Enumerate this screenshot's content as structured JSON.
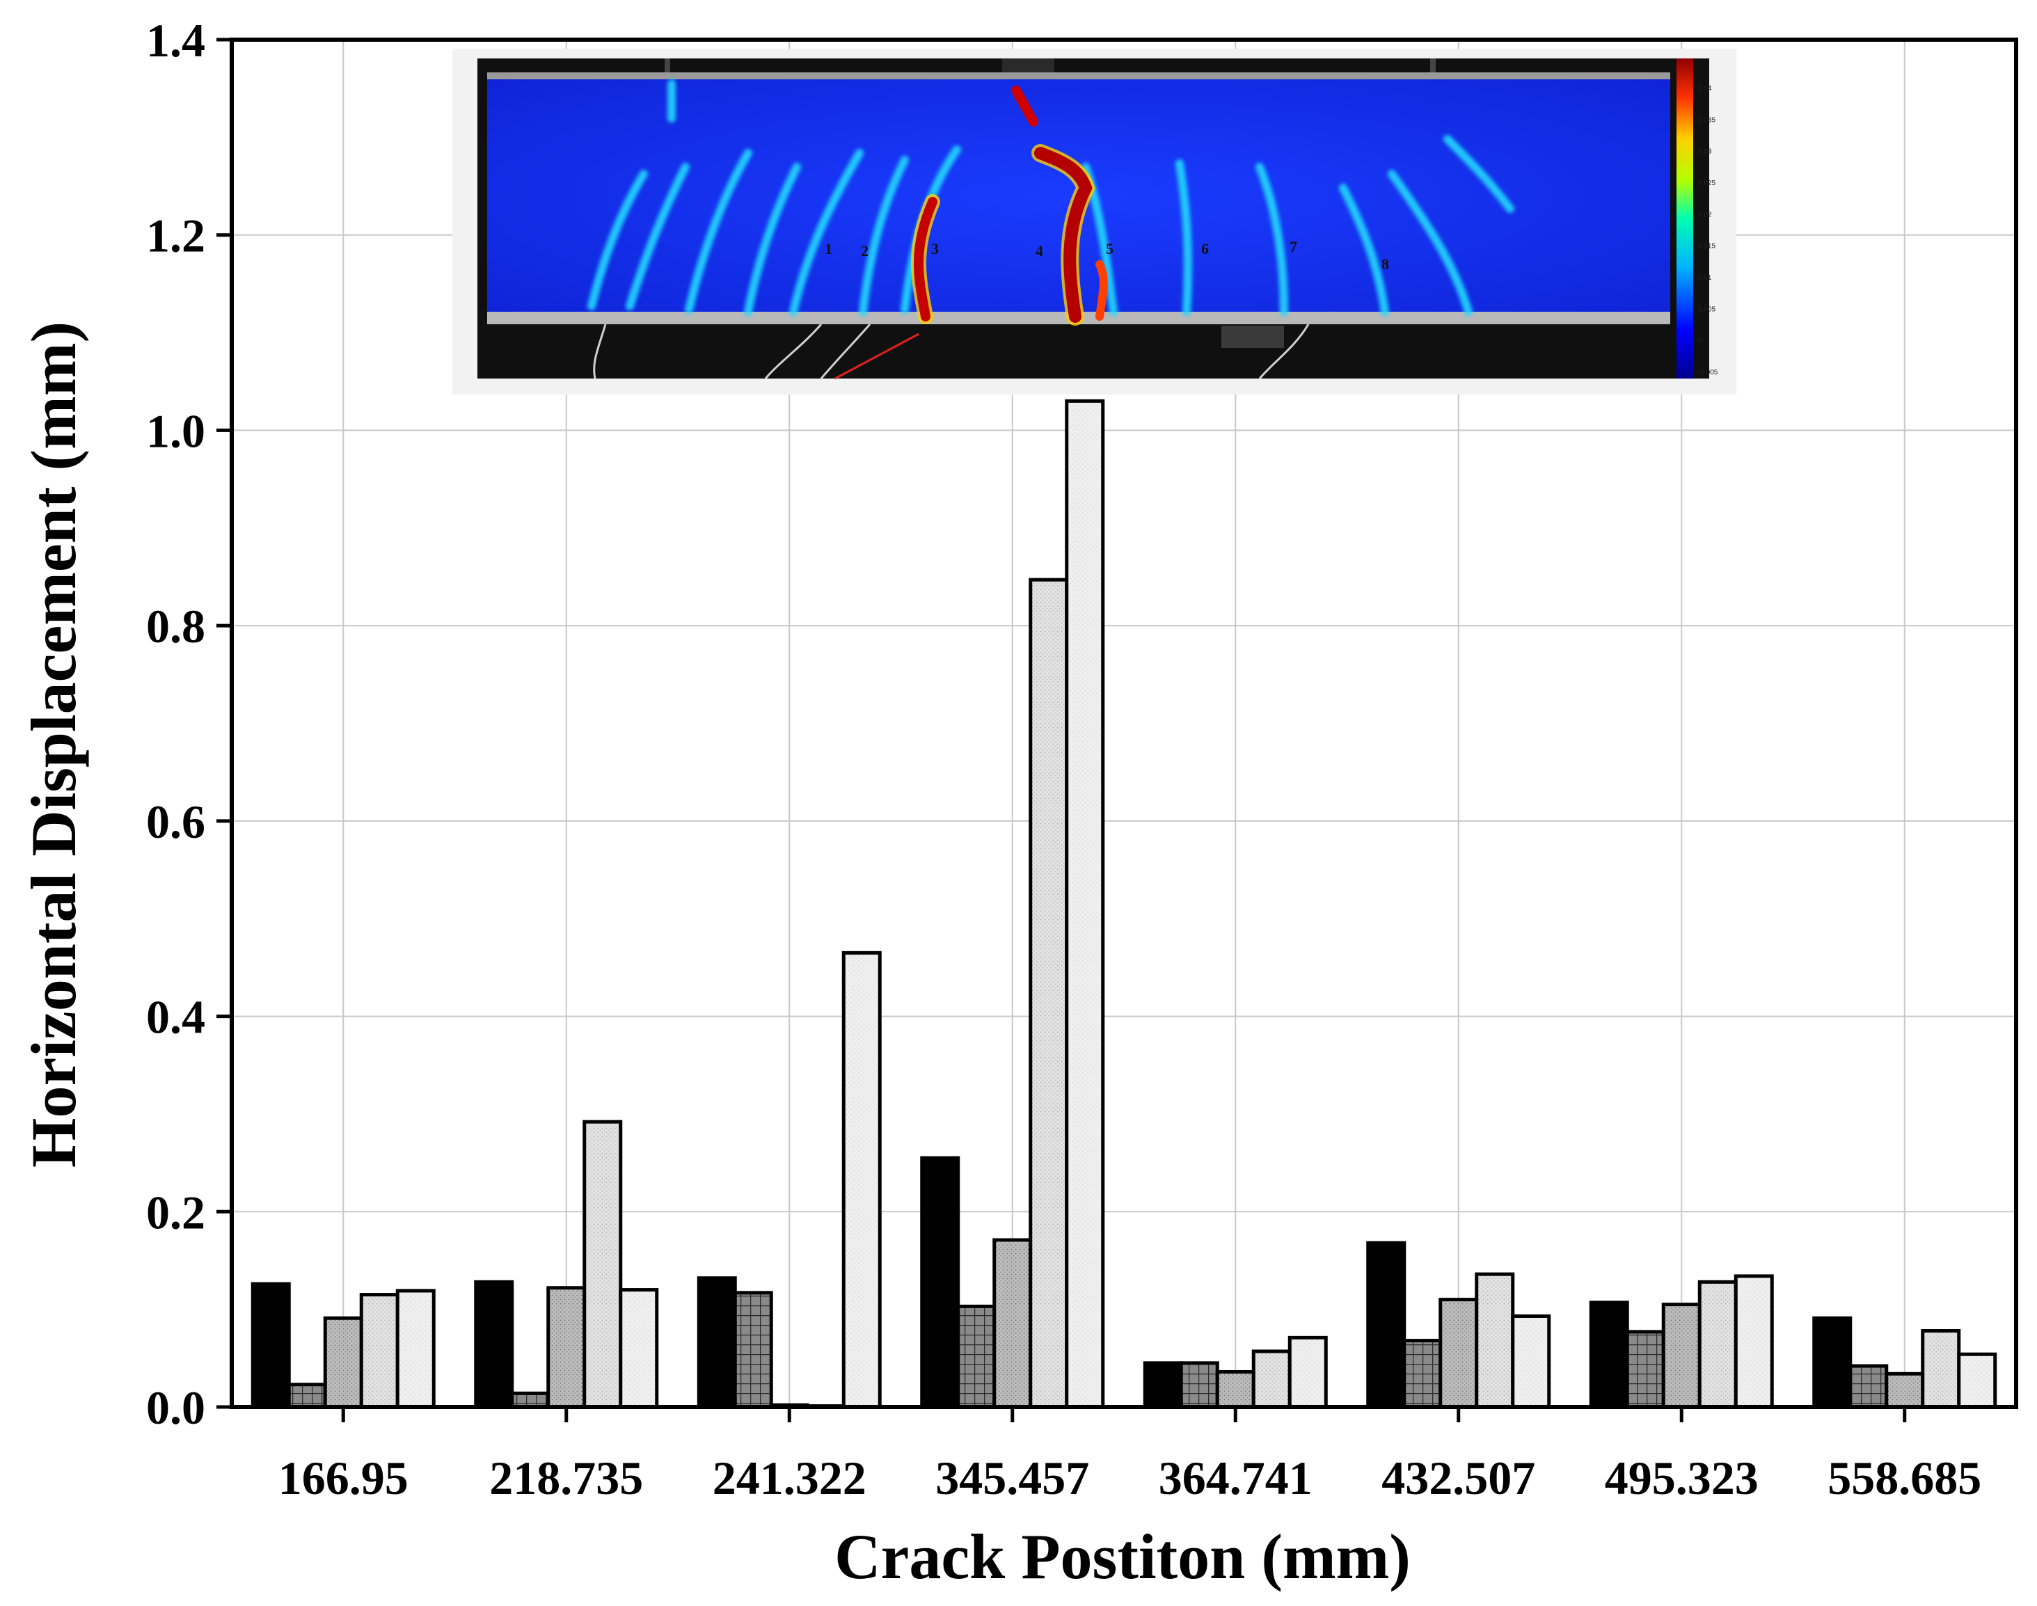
{
  "chart_data": {
    "type": "bar",
    "xlabel": "Crack Postiton (mm)",
    "ylabel": "Horizontal Displacement (mm)",
    "ylim": [
      0,
      1.4
    ],
    "yticks": [
      "0.0",
      "0.2",
      "0.4",
      "0.6",
      "0.8",
      "1.0",
      "1.2",
      "1.4"
    ],
    "grid": true,
    "categories": [
      "166.95",
      "218.735",
      "241.322",
      "345.457",
      "364.741",
      "432.507",
      "495.323",
      "558.685"
    ],
    "series": [
      {
        "pattern": "solid-black",
        "values": [
          0.126,
          0.128,
          0.132,
          0.255,
          0.045,
          0.168,
          0.107,
          0.091
        ]
      },
      {
        "pattern": "grid-dark-gray",
        "values": [
          0.023,
          0.014,
          0.117,
          0.103,
          0.045,
          0.068,
          0.077,
          0.042
        ]
      },
      {
        "pattern": "stipple-gray",
        "values": [
          0.091,
          0.122,
          0.002,
          0.171,
          0.036,
          0.11,
          0.105,
          0.034
        ]
      },
      {
        "pattern": "stipple-light-gray",
        "values": [
          0.115,
          0.292,
          0.001,
          0.847,
          0.057,
          0.136,
          0.128,
          0.078
        ]
      },
      {
        "pattern": "stipple-very-light-gray",
        "values": [
          0.119,
          0.12,
          0.465,
          1.03,
          0.071,
          0.093,
          0.134,
          0.054
        ]
      }
    ],
    "inset": {
      "description_image": "DIC strain contour of beam with cracks",
      "crack_labels": [
        "1",
        "2",
        "3",
        "4",
        "5",
        "6",
        "7",
        "8"
      ],
      "colorbar_labels": [
        "0.04",
        "0.035",
        "0.03",
        "0.025",
        "0.02",
        "0.015",
        "0.01",
        "0.005",
        "0",
        "-0.005"
      ]
    }
  }
}
